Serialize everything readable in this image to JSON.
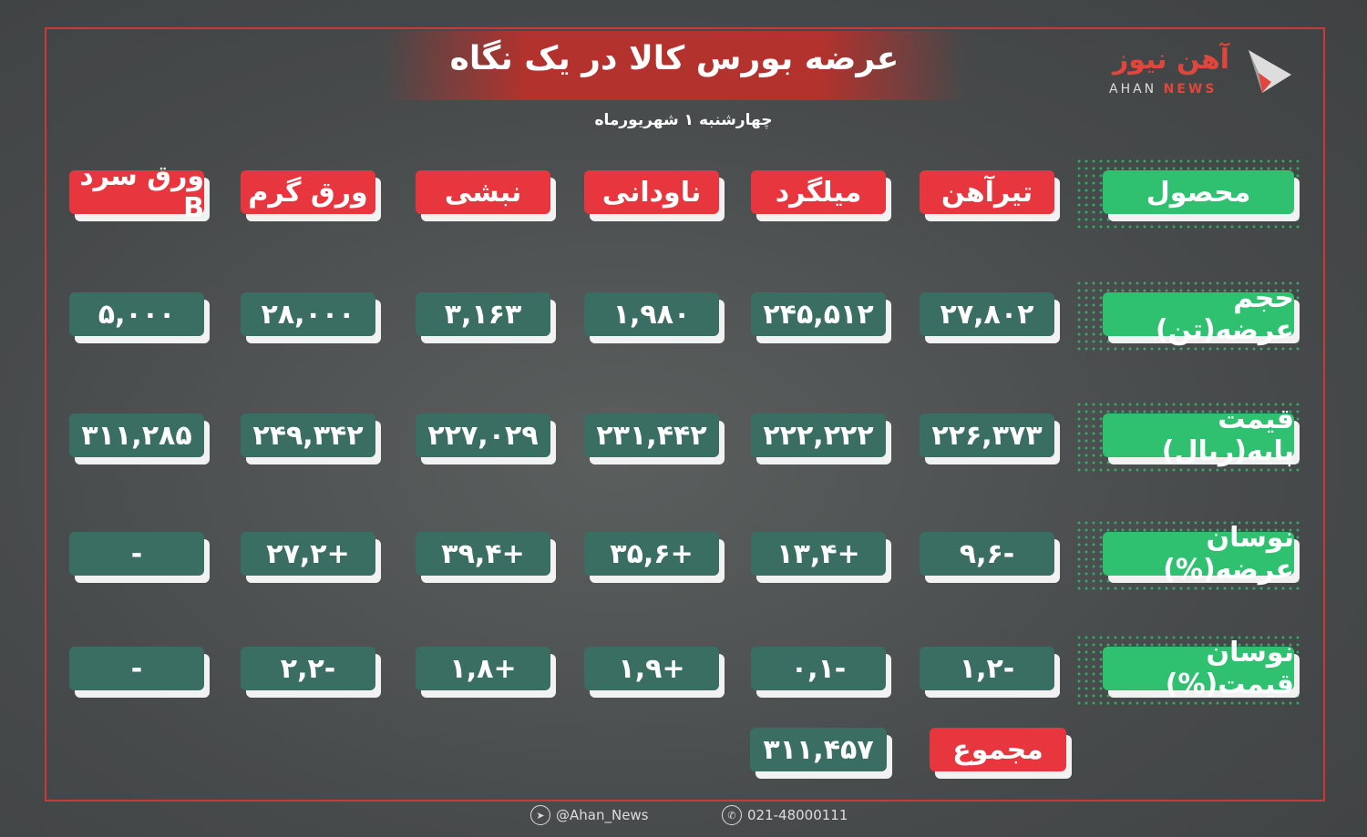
{
  "header": {
    "title": "عرضه بورس کالا در یک نگاه",
    "date": "چهارشنبه ۱ شهریورماه"
  },
  "logo": {
    "fa": "آهن نیوز",
    "en_1": "AHAN",
    "en_2": "NEWS"
  },
  "colors": {
    "background": "#4b4e4f",
    "product_red": "#e8363f",
    "value_teal": "#3b6e62",
    "label_green": "#2fc070",
    "frame": "#c93a34"
  },
  "table": {
    "row_labels": [
      "محصول",
      "حجم عرضه(تن)",
      "قیمت پایه(ریال)",
      "نوسان عرضه(%)",
      "نوسان قیمت(%)"
    ],
    "products": [
      "تیرآهن",
      "میلگرد",
      "ناودانی",
      "نبشی",
      "ورق گرم",
      "ورق سرد B"
    ],
    "volume": [
      "۲۷,۸۰۲",
      "۲۴۵,۵۱۲",
      "۱,۹۸۰",
      "۳,۱۶۳",
      "۲۸,۰۰۰",
      "۵,۰۰۰"
    ],
    "base_price": [
      "۲۲۶,۳۷۳",
      "۲۲۲,۲۲۲",
      "۲۳۱,۴۴۲",
      "۲۲۷,۰۲۹",
      "۲۴۹,۳۴۲",
      "۳۱۱,۲۸۵"
    ],
    "supply_change": [
      "-۹,۶",
      "+۱۳,۴",
      "+۳۵,۶",
      "+۳۹,۴",
      "+۲۷,۲",
      "-"
    ],
    "price_change": [
      "-۱,۲",
      "-۰,۱",
      "+۱,۹",
      "+۱,۸",
      "-۲,۲",
      "-"
    ],
    "total_label": "مجموع",
    "total_value": "۳۱۱,۴۵۷"
  },
  "footer": {
    "telegram": "@Ahan_News",
    "phone": "021-48000111",
    "telegram_icon": "telegram-icon",
    "phone_icon": "phone-icon"
  }
}
